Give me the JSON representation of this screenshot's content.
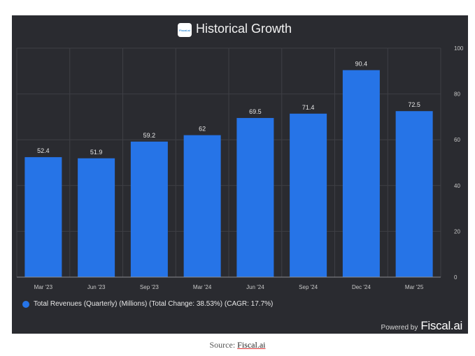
{
  "header": {
    "logo_text": "Fiscal.ai",
    "title": "Historical Growth"
  },
  "chart_data": {
    "type": "bar",
    "title": "Historical Growth",
    "categories": [
      "Mar '23",
      "Jun '23",
      "Sep '23",
      "Mar '24",
      "Jun '24",
      "Sep '24",
      "Dec '24",
      "Mar '25"
    ],
    "series": [
      {
        "name": "Total Revenues (Quarterly) (Millions) (Total Change: 38.53%) (CAGR: 17.7%)",
        "values": [
          52.4,
          51.9,
          59.2,
          62,
          69.5,
          71.4,
          90.4,
          72.5
        ]
      }
    ],
    "ylim": [
      0,
      100
    ],
    "yticks": [
      0,
      20,
      40,
      60,
      80,
      100
    ],
    "colors": {
      "bar": "#2674e7",
      "grid": "#3e3f45",
      "text": "#e6e6e6",
      "axis_text": "#c8c8c8"
    },
    "legend_position": "bottom-left"
  },
  "footer": {
    "powered_by": "Powered by",
    "brand": "Fiscal.ai"
  },
  "source": {
    "label": "Source:",
    "link_text": "Fiscal.ai"
  }
}
